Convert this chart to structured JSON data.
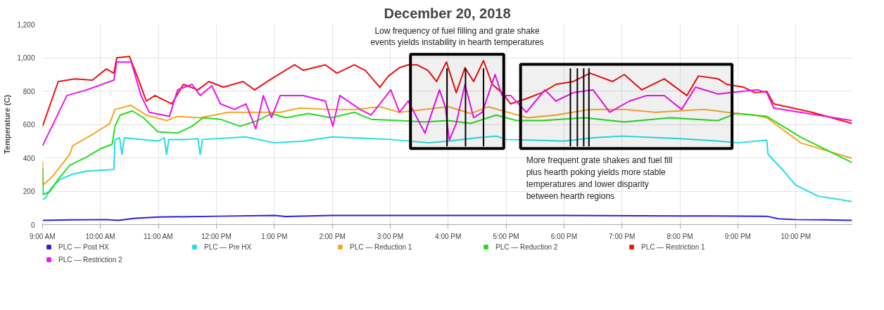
{
  "chart_data": {
    "type": "line",
    "title": "December 20, 2018",
    "ylabel": "Temperature (C)",
    "xlim": [
      9,
      22.97
    ],
    "ylim": [
      0,
      1200
    ],
    "xticks": [
      {
        "value": 9,
        "label": "9:00 AM"
      },
      {
        "value": 10,
        "label": "10:00 AM"
      },
      {
        "value": 11,
        "label": "11:00 AM"
      },
      {
        "value": 12,
        "label": "12:00 PM"
      },
      {
        "value": 13,
        "label": "1:00 PM"
      },
      {
        "value": 14,
        "label": "2:00 PM"
      },
      {
        "value": 15,
        "label": "3:00 PM"
      },
      {
        "value": 16,
        "label": "4:00 PM"
      },
      {
        "value": 17,
        "label": "5:00 PM"
      },
      {
        "value": 18,
        "label": "6:00 PM"
      },
      {
        "value": 19,
        "label": "7:00 PM"
      },
      {
        "value": 20,
        "label": "8:00 PM"
      },
      {
        "value": 21,
        "label": "9:00 PM"
      },
      {
        "value": 22,
        "label": "10:00 PM"
      }
    ],
    "yticks": [
      0,
      200,
      400,
      600,
      800,
      {
        "value": 1000,
        "label": "1,000"
      },
      {
        "value": 1200,
        "label": "1,200"
      }
    ],
    "grid": true,
    "legend": "bottom",
    "series": [
      {
        "name": "PLC — Post HX",
        "color": "#2b1de6",
        "x": [
          9.0,
          9.5,
          10.1,
          10.3,
          10.6,
          11.0,
          12.0,
          13.0,
          13.2,
          14.0,
          16.0,
          18.0,
          20.0,
          21.5,
          21.7,
          22.0,
          22.5,
          22.97
        ],
        "values": [
          25,
          28,
          30,
          25,
          38,
          45,
          50,
          55,
          48,
          55,
          55,
          55,
          52,
          50,
          35,
          30,
          28,
          25
        ]
      },
      {
        "name": "PLC — Pre HX",
        "color": "#1fe0e0",
        "x": [
          9.0,
          9.05,
          9.15,
          9.3,
          9.5,
          9.75,
          10.0,
          10.23,
          10.25,
          10.33,
          10.37,
          10.41,
          11.0,
          11.1,
          11.14,
          11.18,
          11.5,
          11.68,
          11.72,
          11.76,
          12.5,
          13.0,
          13.5,
          14.0,
          15.0,
          15.67,
          16.0,
          16.5,
          16.83,
          17.0,
          17.5,
          18.0,
          18.5,
          19.0,
          20.0,
          20.67,
          21.0,
          21.5,
          21.52,
          21.79,
          21.99,
          22.38,
          22.97
        ],
        "values": [
          150,
          160,
          220,
          270,
          300,
          320,
          325,
          330,
          510,
          520,
          420,
          520,
          500,
          520,
          420,
          510,
          510,
          515,
          420,
          510,
          525,
          490,
          500,
          525,
          510,
          490,
          500,
          520,
          530,
          510,
          505,
          500,
          520,
          530,
          515,
          500,
          490,
          506,
          422,
          322,
          238,
          171,
          138
        ]
      },
      {
        "name": "PLC — Reduction 1",
        "color": "#f5a623",
        "x": [
          9.0,
          9.01,
          9.17,
          9.47,
          9.52,
          9.86,
          10.16,
          10.25,
          10.52,
          10.79,
          11.14,
          11.33,
          11.72,
          12.21,
          12.71,
          13.1,
          13.44,
          13.94,
          14.43,
          14.82,
          15.16,
          15.6,
          16.0,
          16.39,
          16.69,
          17.03,
          17.37,
          17.86,
          18.45,
          19.04,
          19.58,
          20.42,
          20.81,
          21.3,
          21.5,
          22.09,
          22.97
        ],
        "values": [
          380,
          238,
          288,
          422,
          472,
          539,
          606,
          690,
          715,
          656,
          623,
          648,
          640,
          673,
          673,
          673,
          698,
          690,
          690,
          706,
          673,
          690,
          706,
          665,
          706,
          673,
          640,
          656,
          690,
          690,
          673,
          690,
          673,
          656,
          640,
          489,
          397
        ]
      },
      {
        "name": "PLC — Reduction 2",
        "color": "#22dd22",
        "x": [
          9.0,
          9.01,
          9.12,
          9.27,
          9.47,
          9.76,
          10.01,
          10.2,
          10.25,
          10.34,
          10.55,
          10.74,
          10.99,
          11.33,
          11.58,
          11.77,
          12.07,
          12.41,
          12.71,
          12.95,
          13.2,
          13.59,
          13.98,
          14.38,
          14.67,
          15.16,
          15.6,
          16.0,
          16.39,
          16.83,
          17.18,
          17.62,
          18.35,
          19.04,
          19.83,
          20.66,
          20.96,
          21.5,
          22.09,
          22.97
        ],
        "values": [
          339,
          180,
          196,
          272,
          355,
          405,
          456,
          481,
          589,
          656,
          681,
          640,
          556,
          548,
          589,
          640,
          631,
          589,
          623,
          665,
          640,
          665,
          640,
          673,
          631,
          623,
          615,
          623,
          606,
          656,
          623,
          623,
          640,
          615,
          640,
          623,
          665,
          648,
          523,
          372
        ]
      },
      {
        "name": "PLC — Restriction 1",
        "color": "#ee1111",
        "x": [
          9.0,
          9.27,
          9.56,
          9.86,
          10.1,
          10.23,
          10.28,
          10.5,
          10.65,
          10.79,
          10.94,
          11.23,
          11.43,
          11.68,
          11.87,
          12.12,
          12.46,
          12.66,
          12.95,
          13.35,
          13.5,
          13.88,
          14.08,
          14.38,
          14.57,
          14.82,
          14.97,
          15.16,
          15.31,
          15.46,
          15.65,
          15.8,
          15.97,
          16.14,
          16.29,
          16.44,
          16.61,
          16.76,
          16.93,
          17.08,
          17.37,
          17.62,
          17.86,
          18.16,
          18.45,
          18.84,
          19.04,
          19.34,
          19.73,
          20.12,
          20.32,
          20.66,
          20.81,
          21.1,
          21.3,
          21.5,
          21.62,
          22.28,
          22.97
        ],
        "values": [
          590,
          857,
          873,
          865,
          932,
          907,
          999,
          1007,
          873,
          740,
          773,
          723,
          840,
          807,
          857,
          823,
          857,
          807,
          873,
          957,
          924,
          957,
          907,
          957,
          924,
          823,
          890,
          940,
          957,
          957,
          924,
          857,
          974,
          790,
          940,
          857,
          982,
          840,
          790,
          723,
          757,
          790,
          840,
          857,
          907,
          857,
          899,
          807,
          873,
          773,
          890,
          873,
          840,
          823,
          790,
          798,
          723,
          673,
          606
        ]
      },
      {
        "name": "PLC — Restriction 2",
        "color": "#ee11ee",
        "x": [
          9.0,
          9.42,
          9.76,
          10.23,
          10.28,
          10.53,
          10.7,
          10.84,
          11.19,
          11.33,
          11.58,
          11.72,
          11.92,
          12.07,
          12.31,
          12.51,
          12.68,
          12.81,
          12.95,
          13.1,
          13.3,
          13.5,
          13.88,
          14.01,
          14.13,
          14.48,
          14.67,
          15.01,
          15.16,
          15.31,
          15.6,
          15.85,
          15.95,
          16.02,
          16.14,
          16.29,
          16.44,
          16.59,
          16.81,
          16.93,
          17.08,
          17.35,
          17.67,
          17.86,
          18.16,
          18.5,
          18.79,
          19.13,
          19.43,
          19.73,
          20.03,
          20.27,
          20.66,
          21.06,
          21.35,
          21.5,
          21.62,
          22.97
        ],
        "values": [
          472,
          773,
          807,
          865,
          974,
          974,
          773,
          673,
          648,
          807,
          840,
          773,
          832,
          723,
          690,
          723,
          573,
          773,
          640,
          773,
          773,
          773,
          740,
          589,
          773,
          690,
          656,
          807,
          673,
          740,
          548,
          807,
          706,
          506,
          606,
          840,
          640,
          673,
          899,
          773,
          773,
          673,
          807,
          740,
          790,
          807,
          673,
          740,
          773,
          773,
          690,
          823,
          782,
          798,
          807,
          790,
          698,
          623
        ]
      }
    ],
    "bands": [
      {
        "axis": "x",
        "from": 15.35,
        "to": 16.96,
        "label": "Low frequency of fuel filling and grate shake\nevents yields instability in hearth temperatures",
        "color": "#000000"
      },
      {
        "axis": "x",
        "from": 17.25,
        "to": 20.9,
        "label": "More frequent grate shakes and fuel fill\nplus hearth poking yields more stable\ntemperatures and lower disparity\nbetween hearth regions",
        "color": "#000000"
      }
    ],
    "ref_lines": [
      {
        "axis": "x",
        "value": 15.98,
        "color": "#000000"
      },
      {
        "axis": "x",
        "value": 16.3,
        "color": "#000000"
      },
      {
        "axis": "x",
        "value": 16.61,
        "color": "#000000"
      },
      {
        "axis": "x",
        "value": 18.11,
        "color": "#000000"
      },
      {
        "axis": "x",
        "value": 18.23,
        "color": "#000000"
      },
      {
        "axis": "x",
        "value": 18.34,
        "color": "#000000"
      },
      {
        "axis": "x",
        "value": 18.43,
        "color": "#000000"
      }
    ]
  }
}
